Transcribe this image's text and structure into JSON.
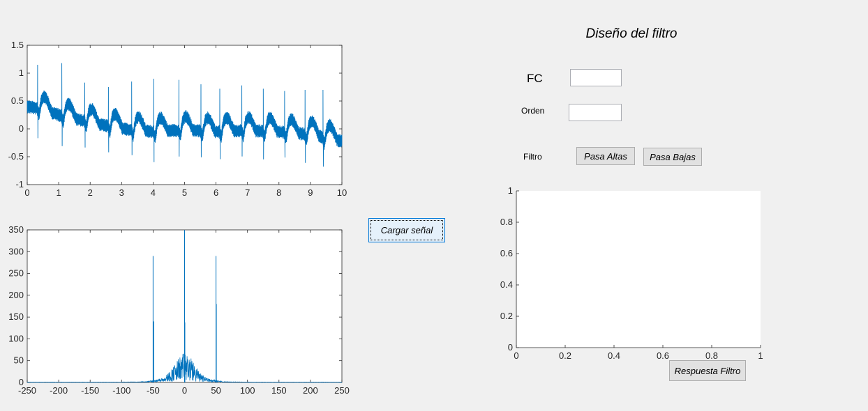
{
  "panel": {
    "title": "Diseño del filtro",
    "fc_label": "FC",
    "fc_value": "",
    "orden_label": "Orden",
    "orden_value": "",
    "filtro_label": "Filtro",
    "pasa_altas_label": "Pasa Altas",
    "pasa_bajas_label": "Pasa Bajas"
  },
  "buttons": {
    "cargar_label": "Cargar señal",
    "respuesta_label": "Respuesta Filtro"
  },
  "colors": {
    "signal": "#0072bd",
    "axes_bg": "#ffffff",
    "window_bg": "#f0f0f0"
  },
  "chart_data": [
    {
      "type": "line",
      "xlim": [
        0,
        10
      ],
      "ylim": [
        -1,
        1.5
      ],
      "xticks": [
        "0",
        "1",
        "2",
        "3",
        "4",
        "5",
        "6",
        "7",
        "8",
        "9",
        "10"
      ],
      "yticks": [
        "-1",
        "-0.5",
        "0",
        "0.5",
        "1",
        "1.5"
      ],
      "series": [
        {
          "beats_x": [
            0.33,
            1.1,
            1.83,
            2.58,
            3.32,
            4.02,
            4.82,
            5.52,
            6.12,
            6.82,
            7.5,
            8.18,
            8.83,
            9.4
          ],
          "beats_peak": [
            1.15,
            1.18,
            0.83,
            0.75,
            0.85,
            0.9,
            0.88,
            0.8,
            0.72,
            0.78,
            0.72,
            0.68,
            0.7,
            0.7
          ],
          "baseline_x": [
            0,
            0.5,
            1,
            2,
            3,
            4,
            5,
            6,
            7,
            8,
            9,
            10
          ],
          "baseline_y": [
            0.4,
            0.35,
            0.25,
            0.12,
            0.0,
            -0.05,
            -0.02,
            -0.05,
            -0.03,
            -0.05,
            -0.1,
            -0.22
          ]
        }
      ]
    },
    {
      "type": "line",
      "xlim": [
        -250,
        250
      ],
      "ylim": [
        0,
        350
      ],
      "xticks": [
        "-250",
        "-200",
        "-150",
        "-100",
        "-50",
        "0",
        "50",
        "100",
        "150",
        "200",
        "250"
      ],
      "yticks": [
        "0",
        "50",
        "100",
        "150",
        "200",
        "250",
        "300",
        "350"
      ],
      "series": [
        {
          "peaks_x": [
            -50,
            -49,
            0,
            0.5,
            50,
            50.5
          ],
          "peaks_y": [
            290,
            140,
            350,
            138,
            290,
            180
          ]
        }
      ]
    },
    {
      "type": "line",
      "xlim": [
        0,
        1
      ],
      "ylim": [
        0,
        1
      ],
      "xticks": [
        "0",
        "0.2",
        "0.4",
        "0.6",
        "0.8",
        "1"
      ],
      "yticks": [
        "0",
        "0.2",
        "0.4",
        "0.6",
        "0.8",
        "1"
      ],
      "series": []
    }
  ]
}
